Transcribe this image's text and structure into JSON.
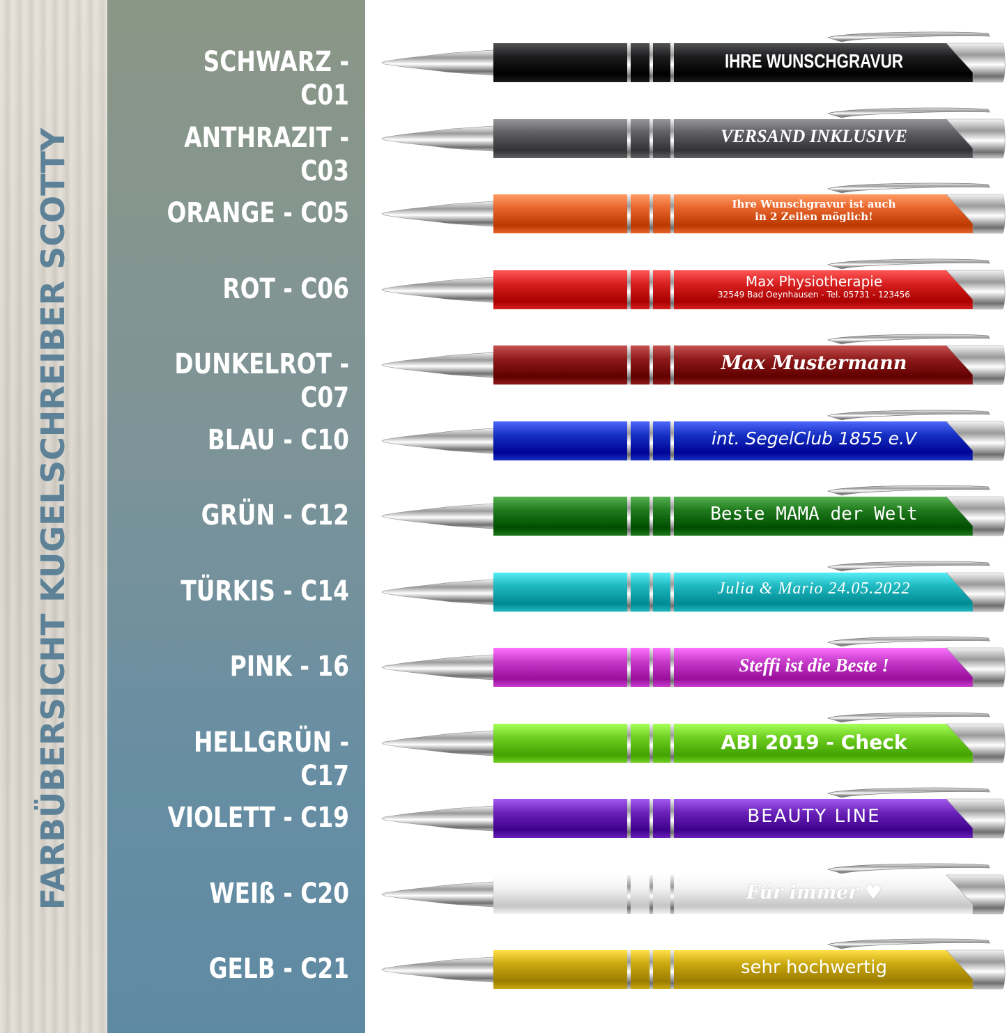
{
  "title": "FARBÜBERSICHT KUGELSCHREIBER SCOTTY",
  "pens": [
    {
      "label": "SCHWARZ - C01",
      "color": "#1c1c1e",
      "engraving": "IHRE WUNSCHGRAVUR"
    },
    {
      "label": "ANTHRAZIT - C03",
      "color": "#5f5f63",
      "engraving": "VERSAND INKLUSIVE"
    },
    {
      "label": "ORANGE - C05",
      "color": "#e8652c",
      "engraving": "Ihre Wunschgravur ist auch",
      "engraving_line2": "in 2 Zeilen möglich!"
    },
    {
      "label": "ROT - C06",
      "color": "#d6201f",
      "engraving": "Max Physiotherapie",
      "engraving_line2": "32549 Bad Oeynhausen - Tel. 05731 - 123456"
    },
    {
      "label": "DUNKELROT - C07",
      "color": "#8e1a1a",
      "engraving": "Max Mustermann"
    },
    {
      "label": "BLAU - C10",
      "color": "#1530c2",
      "engraving": "int. SegelClub 1855 e.V"
    },
    {
      "label": "GRÜN - C12",
      "color": "#1f7a1c",
      "engraving": "Beste MAMA der Welt"
    },
    {
      "label": "TÜRKIS - C14",
      "color": "#1fb7bf",
      "engraving": "Julia & Mario   24.05.2022"
    },
    {
      "label": "PINK - 16",
      "color": "#c63bc9",
      "engraving": "Steffi ist die Beste !"
    },
    {
      "label": "HELLGRÜN - C17",
      "color": "#6fcf21",
      "engraving": "ABI 2019 - Check"
    },
    {
      "label": "VIOLETT - C19",
      "color": "#6a22b8",
      "engraving": "BEAUTY LINE"
    },
    {
      "label": "WEIß - C20",
      "color": "#f2f2f2",
      "engraving": "Für immer ♥"
    },
    {
      "label": "GELB - C21",
      "color": "#c9a90f",
      "engraving": "sehr hochwertig"
    }
  ]
}
